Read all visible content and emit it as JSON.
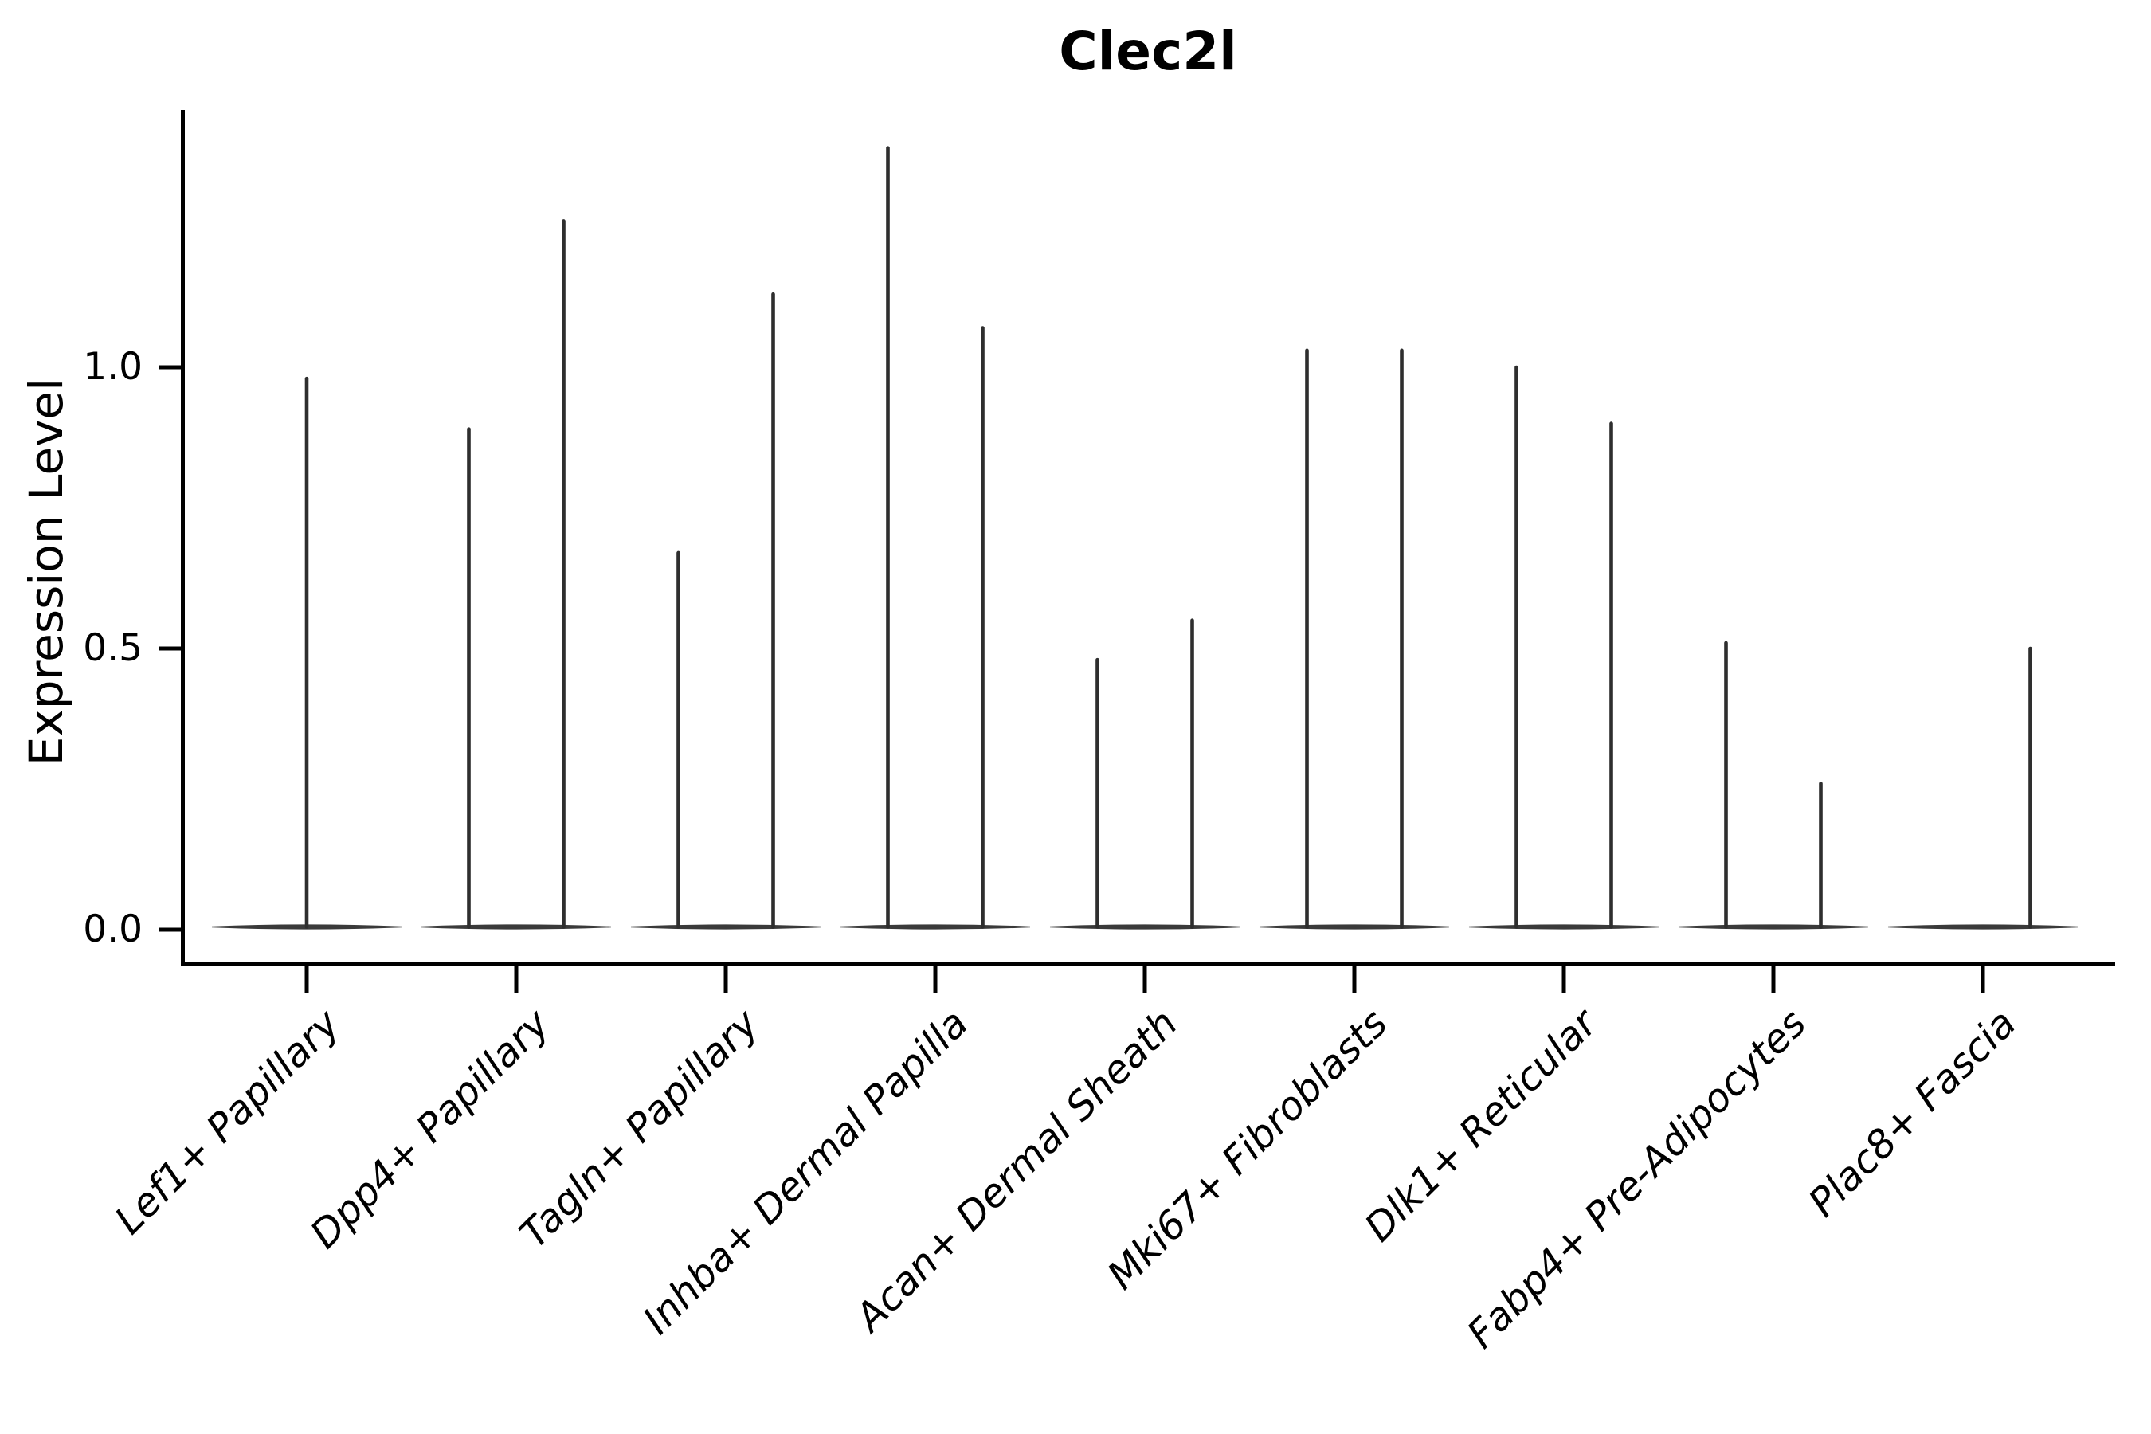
{
  "chart_data": {
    "type": "violin",
    "title": "Clec2l",
    "xlabel": "",
    "ylabel": "Expression Level",
    "yticks": [
      0.0,
      0.5,
      1.0
    ],
    "ytick_labels": [
      "0.0",
      "0.5",
      "1.0"
    ],
    "ylim": [
      -0.07,
      1.45
    ],
    "grid": false,
    "legend": "none",
    "categories": [
      "Lef1+ Papillary",
      "Dpp4+ Papillary",
      "Tagln+ Papillary",
      "Inhba+ Dermal Papilla",
      "Acan+ Dermal Sheath",
      "Mki67+ Fibroblasts",
      "Dlk1+ Reticular",
      "Fabp4+ Pre-Adipocytes",
      "Plac8+ Fascia"
    ],
    "groups": [
      {
        "category": "Lef1+ Papillary",
        "violins": [
          {
            "position": "center",
            "peak": 0.98
          }
        ]
      },
      {
        "category": "Dpp4+ Papillary",
        "violins": [
          {
            "position": "left",
            "peak": 0.89
          },
          {
            "position": "right",
            "peak": 1.26
          }
        ]
      },
      {
        "category": "Tagln+ Papillary",
        "violins": [
          {
            "position": "left",
            "peak": 0.67
          },
          {
            "position": "right",
            "peak": 1.13
          }
        ]
      },
      {
        "category": "Inhba+ Dermal Papilla",
        "violins": [
          {
            "position": "left",
            "peak": 1.39
          },
          {
            "position": "right",
            "peak": 1.07
          }
        ]
      },
      {
        "category": "Acan+ Dermal Sheath",
        "violins": [
          {
            "position": "left",
            "peak": 0.48
          },
          {
            "position": "right",
            "peak": 0.55
          }
        ]
      },
      {
        "category": "Mki67+ Fibroblasts",
        "violins": [
          {
            "position": "left",
            "peak": 1.03
          },
          {
            "position": "right",
            "peak": 1.03
          }
        ]
      },
      {
        "category": "Dlk1+ Reticular",
        "violins": [
          {
            "position": "left",
            "peak": 1.0
          },
          {
            "position": "right",
            "peak": 0.9
          }
        ]
      },
      {
        "category": "Fabp4+ Pre-Adipocytes",
        "violins": [
          {
            "position": "left",
            "peak": 0.51
          },
          {
            "position": "right",
            "peak": 0.26
          }
        ]
      },
      {
        "category": "Plac8+ Fascia",
        "violins": [
          {
            "position": "left",
            "peak": 0.0
          },
          {
            "position": "right",
            "peak": 0.5
          }
        ]
      }
    ],
    "colors": {
      "violin": "#2e2e2e",
      "violin_base": "#3a3a3a",
      "axis": "#000000",
      "text": "#000000",
      "background": "#ffffff"
    }
  }
}
